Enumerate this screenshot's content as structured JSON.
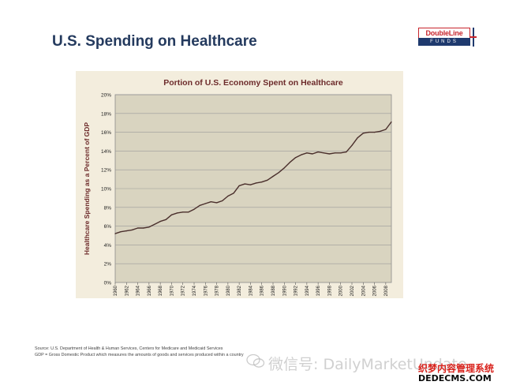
{
  "slide": {
    "title": "U.S. Spending on Healthcare",
    "logo": {
      "top": "DoubleLine",
      "bottom": "FUNDS"
    }
  },
  "footnotes": {
    "source": "Source:  U.S. Department of Health & Human Services, Centers for Medicare and Medicaid Services",
    "gdp": "GDP = Gross Domestic Product which measures the amounts of goods and services produced within a country"
  },
  "watermark": "微信号: DailyMarketUpdate",
  "corner_badge": {
    "line1": "织梦内容管理系统",
    "line2": "DEDECMS.COM"
  },
  "colors": {
    "title": "#243a5e",
    "panel_bg": "#f3eddd",
    "plot_bg": "#d9d4c0",
    "line": "#4a2f2c",
    "chart_title": "#6d2b2b",
    "logo_red": "#c8252c",
    "logo_blue": "#1f3a6e"
  },
  "chart_data": {
    "type": "line",
    "title": "Portion of U.S. Economy Spent on Healthcare",
    "xlabel": "",
    "ylabel": "Healthcare  Spending as a Percent of GDP",
    "xlim": [
      1960,
      2009
    ],
    "ylim": [
      0,
      20
    ],
    "x_ticks": [
      1960,
      1962,
      1964,
      1966,
      1968,
      1970,
      1972,
      1974,
      1976,
      1978,
      1980,
      1982,
      1984,
      1986,
      1988,
      1990,
      1992,
      1994,
      1996,
      1998,
      2000,
      2002,
      2004,
      2006,
      2008
    ],
    "y_ticks": [
      "0%",
      "2%",
      "4%",
      "6%",
      "8%",
      "10%",
      "12%",
      "14%",
      "16%",
      "18%",
      "20%"
    ],
    "grid": true,
    "legend": "none",
    "series": [
      {
        "x": [
          1960,
          1961,
          1962,
          1963,
          1964,
          1965,
          1966,
          1967,
          1968,
          1969,
          1970,
          1971,
          1972,
          1973,
          1974,
          1975,
          1976,
          1977,
          1978,
          1979,
          1980,
          1981,
          1982,
          1983,
          1984,
          1985,
          1986,
          1987,
          1988,
          1989,
          1990,
          1991,
          1992,
          1993,
          1994,
          1995,
          1996,
          1997,
          1998,
          1999,
          2000,
          2001,
          2002,
          2003,
          2004,
          2005,
          2006,
          2007,
          2008,
          2009
        ],
        "values": [
          5.2,
          5.4,
          5.5,
          5.6,
          5.8,
          5.8,
          5.9,
          6.2,
          6.5,
          6.7,
          7.2,
          7.4,
          7.5,
          7.5,
          7.8,
          8.2,
          8.4,
          8.6,
          8.5,
          8.7,
          9.2,
          9.5,
          10.3,
          10.5,
          10.4,
          10.6,
          10.7,
          10.9,
          11.3,
          11.7,
          12.2,
          12.8,
          13.3,
          13.6,
          13.8,
          13.7,
          13.9,
          13.8,
          13.7,
          13.8,
          13.8,
          13.9,
          14.6,
          15.4,
          15.9,
          16.0,
          16.0,
          16.1,
          16.3,
          17.1
        ]
      }
    ]
  }
}
